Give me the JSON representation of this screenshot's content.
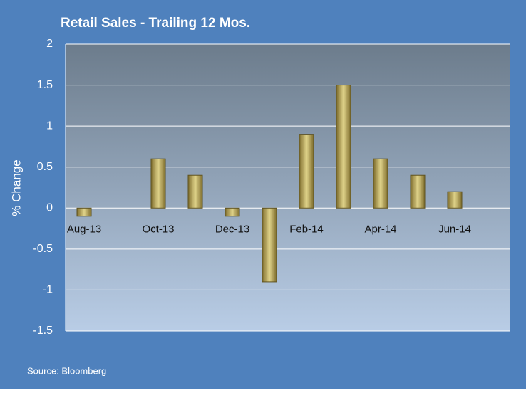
{
  "chart_data": {
    "type": "bar",
    "title": "Retail Sales - Trailing 12 Mos.",
    "y_label": "% Change",
    "source": "Source: Bloomberg",
    "categories": [
      "Aug-13",
      null,
      "Oct-13",
      null,
      "Dec-13",
      null,
      "Feb-14",
      null,
      "Apr-14",
      null,
      "Jun-14",
      null
    ],
    "values": [
      -0.1,
      0,
      0.6,
      0.4,
      -0.1,
      -0.9,
      0.9,
      1.5,
      0.6,
      0.4,
      0.2,
      null
    ],
    "color": "#c2b060",
    "ylim": [
      -1.5,
      2
    ],
    "yticks": [
      -1.5,
      -1,
      -0.5,
      0,
      0.5,
      1,
      1.5,
      2
    ],
    "grid": true
  }
}
